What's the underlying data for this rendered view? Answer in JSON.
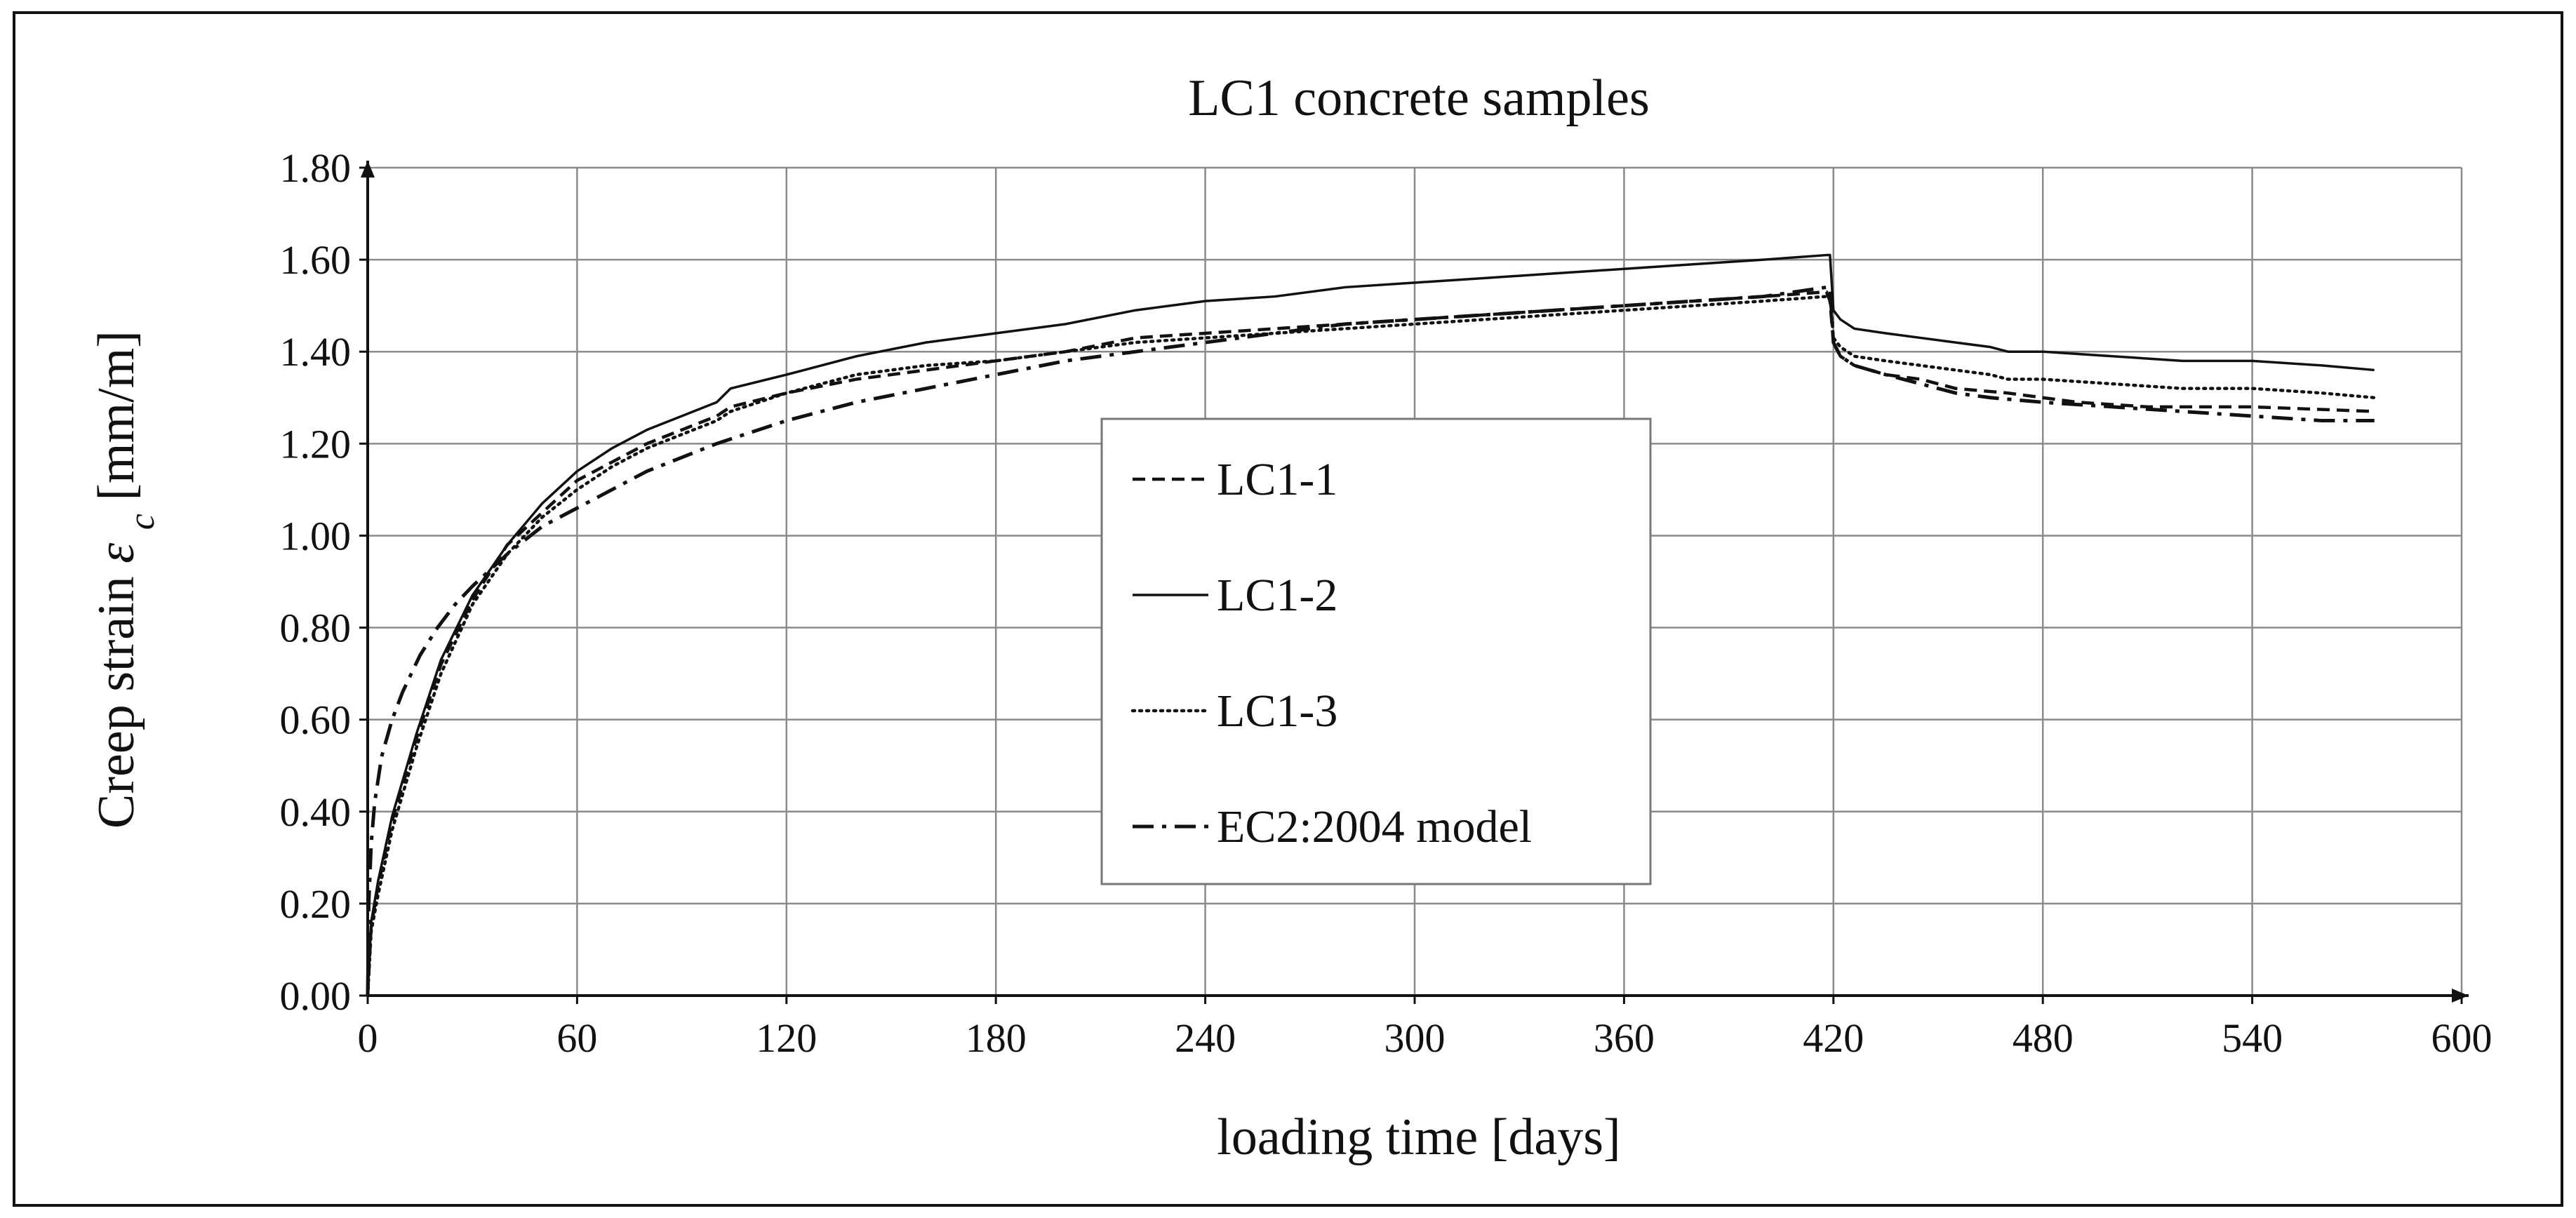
{
  "chart_data": {
    "type": "line",
    "title": "LC1 concrete samples",
    "xlabel": "loading time [days]",
    "ylabel": {
      "prefix": "Creep strain ",
      "symbol": "ε",
      "subscript": "c",
      "suffix": " [mm/m]"
    },
    "xlim": [
      0,
      600
    ],
    "ylim": [
      0,
      1.8
    ],
    "xticks": [
      0,
      60,
      120,
      180,
      240,
      300,
      360,
      420,
      480,
      540,
      600
    ],
    "yticks": [
      0.0,
      0.2,
      0.4,
      0.6,
      0.8,
      1.0,
      1.2,
      1.4,
      1.6,
      1.8
    ],
    "ytick_labels": [
      "0.00",
      "0.20",
      "0.40",
      "0.60",
      "0.80",
      "1.00",
      "1.20",
      "1.40",
      "1.60",
      "1.80"
    ],
    "grid": true,
    "legend_position": "center",
    "series": [
      {
        "name": "LC1-1",
        "style": "dashed",
        "color": "#111111",
        "x": [
          0,
          1,
          3,
          7,
          14,
          21,
          30,
          40,
          50,
          60,
          70,
          80,
          90,
          100,
          104,
          120,
          140,
          160,
          180,
          200,
          220,
          240,
          260,
          280,
          300,
          320,
          340,
          360,
          380,
          400,
          418,
          419,
          420,
          422,
          426,
          435,
          445,
          455,
          470,
          490,
          510,
          540,
          575
        ],
        "y": [
          0.0,
          0.15,
          0.24,
          0.38,
          0.56,
          0.72,
          0.86,
          0.98,
          1.05,
          1.12,
          1.16,
          1.2,
          1.23,
          1.26,
          1.28,
          1.31,
          1.34,
          1.36,
          1.38,
          1.4,
          1.43,
          1.44,
          1.45,
          1.46,
          1.47,
          1.48,
          1.49,
          1.5,
          1.51,
          1.52,
          1.53,
          1.51,
          1.42,
          1.39,
          1.37,
          1.35,
          1.34,
          1.32,
          1.31,
          1.29,
          1.28,
          1.28,
          1.27
        ]
      },
      {
        "name": "LC1-2",
        "style": "solid",
        "color": "#111111",
        "x": [
          0,
          1,
          3,
          7,
          14,
          21,
          30,
          40,
          50,
          60,
          70,
          80,
          90,
          100,
          104,
          120,
          140,
          160,
          180,
          200,
          220,
          240,
          260,
          280,
          300,
          320,
          340,
          360,
          380,
          400,
          418,
          419,
          420,
          422,
          426,
          435,
          445,
          455,
          465,
          470,
          480,
          500,
          520,
          540,
          560,
          575
        ],
        "y": [
          0.0,
          0.16,
          0.25,
          0.39,
          0.57,
          0.73,
          0.87,
          0.98,
          1.07,
          1.14,
          1.19,
          1.23,
          1.26,
          1.29,
          1.32,
          1.35,
          1.39,
          1.42,
          1.44,
          1.46,
          1.49,
          1.51,
          1.52,
          1.54,
          1.55,
          1.56,
          1.57,
          1.58,
          1.59,
          1.6,
          1.61,
          1.61,
          1.49,
          1.47,
          1.45,
          1.44,
          1.43,
          1.42,
          1.41,
          1.4,
          1.4,
          1.39,
          1.38,
          1.38,
          1.37,
          1.36
        ]
      },
      {
        "name": "LC1-3",
        "style": "dotted",
        "color": "#111111",
        "x": [
          0,
          1,
          3,
          7,
          14,
          21,
          30,
          40,
          50,
          60,
          70,
          80,
          90,
          100,
          104,
          120,
          140,
          160,
          180,
          200,
          220,
          240,
          260,
          280,
          300,
          320,
          340,
          360,
          380,
          400,
          418,
          419,
          420,
          422,
          426,
          435,
          445,
          455,
          465,
          470,
          480,
          500,
          520,
          540,
          560,
          575
        ],
        "y": [
          0.0,
          0.14,
          0.22,
          0.36,
          0.54,
          0.7,
          0.85,
          0.96,
          1.04,
          1.1,
          1.15,
          1.19,
          1.22,
          1.25,
          1.27,
          1.31,
          1.35,
          1.37,
          1.38,
          1.4,
          1.42,
          1.43,
          1.44,
          1.45,
          1.46,
          1.47,
          1.48,
          1.49,
          1.5,
          1.51,
          1.52,
          1.52,
          1.43,
          1.41,
          1.39,
          1.38,
          1.37,
          1.36,
          1.35,
          1.34,
          1.34,
          1.33,
          1.32,
          1.32,
          1.31,
          1.3
        ]
      },
      {
        "name": "EC2:2004 model",
        "style": "dashdot",
        "color": "#111111",
        "x": [
          0,
          0.3,
          1,
          2,
          4,
          7,
          10,
          15,
          20,
          25,
          30,
          40,
          50,
          60,
          80,
          100,
          120,
          140,
          160,
          180,
          200,
          220,
          240,
          260,
          280,
          300,
          320,
          340,
          360,
          380,
          400,
          418,
          419,
          420,
          422,
          426,
          435,
          445,
          455,
          465,
          480,
          500,
          520,
          540,
          560,
          575
        ],
        "y": [
          0.0,
          0.2,
          0.33,
          0.42,
          0.52,
          0.6,
          0.66,
          0.74,
          0.8,
          0.85,
          0.89,
          0.96,
          1.02,
          1.06,
          1.14,
          1.2,
          1.25,
          1.29,
          1.32,
          1.35,
          1.38,
          1.4,
          1.42,
          1.44,
          1.46,
          1.47,
          1.48,
          1.49,
          1.5,
          1.51,
          1.52,
          1.54,
          1.54,
          1.42,
          1.39,
          1.37,
          1.35,
          1.33,
          1.31,
          1.3,
          1.29,
          1.28,
          1.27,
          1.26,
          1.25,
          1.25
        ]
      }
    ]
  }
}
